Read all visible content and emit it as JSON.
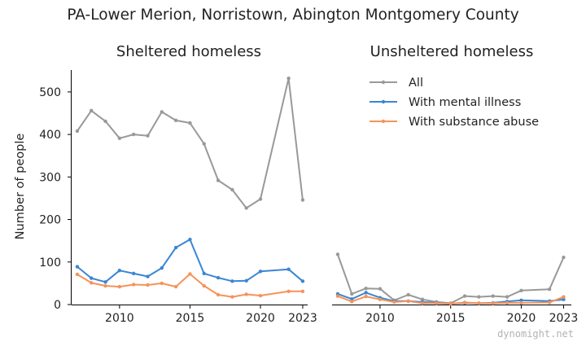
{
  "suptitle": "PA-Lower Merion, Norristown, Abington Montgomery County",
  "watermark": "dynomight.net",
  "ylabel": "Number of people",
  "legend": {
    "placement": "top-right of right panel",
    "entries": [
      "All",
      "With mental illness",
      "With substance abuse"
    ]
  },
  "colors": {
    "All": "#999999",
    "With mental illness": "#3a86d4",
    "With substance abuse": "#f5935a"
  },
  "chart_data": [
    {
      "type": "line",
      "title": "Sheltered homeless",
      "xlabel": "",
      "ylabel": "Number of people",
      "x": [
        2007,
        2008,
        2009,
        2010,
        2011,
        2012,
        2013,
        2014,
        2015,
        2016,
        2017,
        2018,
        2019,
        2020,
        2022,
        2023
      ],
      "xticks": [
        "2010",
        "2015",
        "2020",
        "2023"
      ],
      "yticks": [
        "0",
        "100",
        "200",
        "300",
        "400",
        "500"
      ],
      "ylim": [
        0,
        540
      ],
      "grid": false,
      "series": [
        {
          "name": "All",
          "values": [
            408,
            456,
            431,
            391,
            400,
            397,
            453,
            433,
            427,
            378,
            292,
            270,
            227,
            248,
            532,
            246
          ]
        },
        {
          "name": "With mental illness",
          "values": [
            89,
            62,
            53,
            80,
            73,
            66,
            86,
            134,
            153,
            73,
            63,
            55,
            56,
            78,
            83,
            55
          ]
        },
        {
          "name": "With substance abuse",
          "values": [
            71,
            51,
            44,
            42,
            47,
            46,
            50,
            42,
            72,
            44,
            23,
            18,
            24,
            21,
            31,
            31
          ]
        }
      ]
    },
    {
      "type": "line",
      "title": "Unsheltered homeless",
      "xlabel": "",
      "ylabel": "",
      "x": [
        2007,
        2008,
        2009,
        2010,
        2011,
        2012,
        2013,
        2014,
        2015,
        2016,
        2017,
        2018,
        2019,
        2020,
        2022,
        2023
      ],
      "xticks": [
        "2010",
        "2015",
        "2020",
        "2023"
      ],
      "yticks": [],
      "ylim": [
        0,
        540
      ],
      "grid": false,
      "series": [
        {
          "name": "All",
          "values": [
            118,
            25,
            38,
            37,
            10,
            23,
            12,
            6,
            3,
            20,
            18,
            20,
            18,
            33,
            36,
            111
          ]
        },
        {
          "name": "With mental illness",
          "values": [
            25,
            13,
            28,
            16,
            8,
            8,
            6,
            4,
            2,
            4,
            3,
            4,
            7,
            10,
            8,
            12
          ]
        },
        {
          "name": "With substance abuse",
          "values": [
            20,
            7,
            19,
            12,
            6,
            8,
            3,
            3,
            2,
            5,
            3,
            3,
            4,
            4,
            5,
            18
          ]
        }
      ]
    }
  ]
}
